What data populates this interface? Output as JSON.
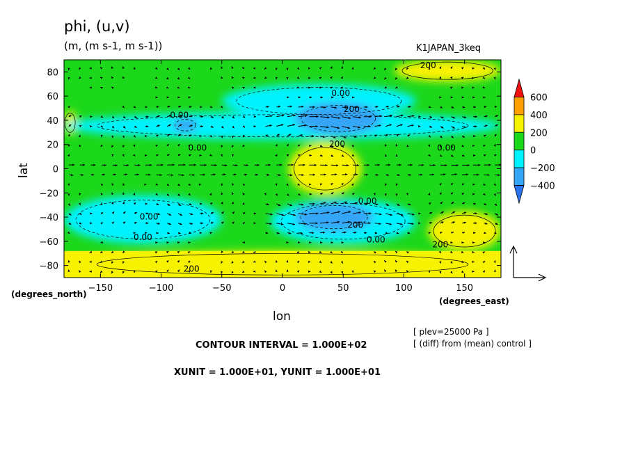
{
  "chart_data": {
    "type": "heatmap",
    "title": "phi, (u,v)",
    "units_line": "(m, (m s-1, m s-1))",
    "experiment": "K1JAPAN_3keq",
    "xlabel": "lon",
    "ylabel": "lat",
    "x_units": "(degrees_east)",
    "y_units": "(degrees_north)",
    "xlim": [
      -180,
      180
    ],
    "ylim": [
      -90,
      90
    ],
    "x_ticks": [
      -150,
      -100,
      -50,
      0,
      50,
      100,
      150
    ],
    "y_ticks": [
      -80,
      -60,
      -40,
      -20,
      0,
      20,
      40,
      60,
      80
    ],
    "x_tick_labels": [
      "−150",
      "−100",
      "−50",
      "0",
      "50",
      "100",
      "150"
    ],
    "y_tick_labels": [
      "−80",
      "−60",
      "−40",
      "−20",
      "0",
      "20",
      "40",
      "60",
      "80"
    ],
    "contour_interval": 100,
    "colorbar": {
      "levels": [
        -600,
        -400,
        -200,
        0,
        200,
        400,
        600
      ],
      "labels": [
        "600",
        "400",
        "200",
        "0",
        "−200",
        "−400"
      ],
      "colors": [
        "#2b74ee",
        "#34a6f7",
        "#00f2ff",
        "#1bd81b",
        "#f7f200",
        "#ffa000",
        "#f01010"
      ]
    },
    "contour_labels": [
      {
        "text": "200",
        "lon": 120,
        "lat": 85
      },
      {
        "text": "0.00",
        "lon": 48,
        "lat": 62
      },
      {
        "text": "200",
        "lon": 57,
        "lat": 49
      },
      {
        "text": "0.00",
        "lon": -85,
        "lat": 44
      },
      {
        "text": "0.00",
        "lon": -70,
        "lat": 17
      },
      {
        "text": "200",
        "lon": 45,
        "lat": 20
      },
      {
        "text": "0.00",
        "lon": 135,
        "lat": 17
      },
      {
        "text": "0.00",
        "lon": 70,
        "lat": -27
      },
      {
        "text": "0.00",
        "lon": -110,
        "lat": -40
      },
      {
        "text": "200",
        "lon": 60,
        "lat": -47
      },
      {
        "text": "0.00",
        "lon": -115,
        "lat": -57
      },
      {
        "text": "0.00",
        "lon": 77,
        "lat": -59
      },
      {
        "text": "200",
        "lon": 130,
        "lat": -63
      },
      {
        "text": "200",
        "lon": -75,
        "lat": -83
      }
    ],
    "regions": [
      {
        "level": 200,
        "lon": [
          -180,
          180
        ],
        "lat": [
          -90,
          -68
        ]
      },
      {
        "level": 200,
        "lon": [
          -180,
          -170
        ],
        "lat": [
          28,
          48
        ]
      },
      {
        "level": 200,
        "lon": [
          92,
          180
        ],
        "lat": [
          72,
          90
        ]
      },
      {
        "level": 200,
        "lon": [
          5,
          65
        ],
        "lat": [
          -22,
          22
        ]
      },
      {
        "level": 200,
        "lon": [
          120,
          180
        ],
        "lat": [
          -68,
          -35
        ]
      },
      {
        "level": -200,
        "lon": [
          -180,
          180
        ],
        "lat": [
          24,
          47
        ]
      },
      {
        "level": -200,
        "lon": [
          -180,
          -50
        ],
        "lat": [
          -62,
          -22
        ]
      },
      {
        "level": -200,
        "lon": [
          -10,
          110
        ],
        "lat": [
          -62,
          -25
        ]
      },
      {
        "level": -200,
        "lon": [
          -50,
          110
        ],
        "lat": [
          42,
          70
        ]
      },
      {
        "level": -400,
        "lon": [
          10,
          82
        ],
        "lat": [
          28,
          55
        ]
      },
      {
        "level": -400,
        "lon": [
          -90,
          -70
        ],
        "lat": [
          30,
          42
        ]
      },
      {
        "level": -400,
        "lon": [
          10,
          75
        ],
        "lat": [
          -52,
          -28
        ]
      }
    ],
    "vector_reference": {
      "xunit": 10,
      "yunit": 10
    }
  },
  "footer": {
    "contour_interval_text": "CONTOUR INTERVAL = 1.000E+02",
    "vector_unit_text": "XUNIT = 1.000E+01, YUNIT = 1.000E+01",
    "plev_text": "[ plev=25000 Pa ]",
    "diff_text": "[ (diff) from (mean) control ]"
  }
}
